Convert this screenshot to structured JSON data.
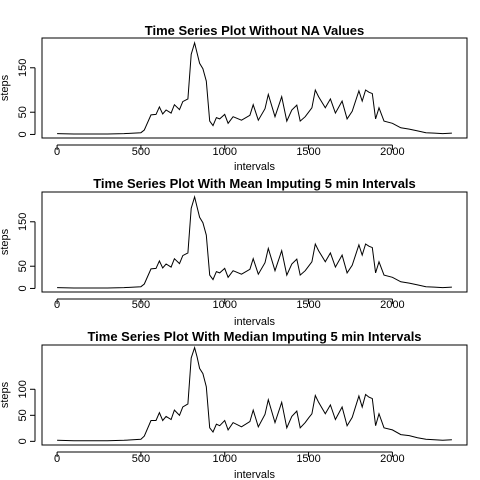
{
  "chart_data": [
    {
      "type": "line",
      "title": "Time Series Plot Without NA Values",
      "xlabel": "intervals",
      "ylabel": "steps",
      "xlim": [
        -90,
        2445
      ],
      "ylim": [
        -8,
        217
      ],
      "xticks": [
        0,
        500,
        1000,
        1500,
        2000
      ],
      "yticks": [
        0,
        50,
        150
      ],
      "grid": false,
      "series": [
        {
          "x": [
            0,
            100,
            200,
            300,
            400,
            500,
            520,
            560,
            590,
            610,
            630,
            650,
            680,
            700,
            730,
            750,
            780,
            800,
            820,
            835,
            850,
            870,
            890,
            910,
            930,
            950,
            970,
            1000,
            1020,
            1050,
            1100,
            1150,
            1170,
            1200,
            1240,
            1260,
            1300,
            1340,
            1370,
            1400,
            1430,
            1450,
            1480,
            1500,
            1520,
            1540,
            1560,
            1600,
            1630,
            1660,
            1700,
            1730,
            1760,
            1800,
            1820,
            1840,
            1860,
            1880,
            1900,
            1920,
            1950,
            2000,
            2050,
            2100,
            2150,
            2200,
            2250,
            2300,
            2355
          ],
          "y": [
            2,
            1,
            1,
            1,
            2,
            4,
            10,
            44,
            45,
            62,
            46,
            55,
            48,
            67,
            56,
            74,
            80,
            180,
            206,
            183,
            160,
            148,
            120,
            30,
            20,
            38,
            35,
            45,
            25,
            40,
            32,
            43,
            67,
            32,
            58,
            90,
            40,
            85,
            30,
            55,
            66,
            30,
            40,
            50,
            60,
            100,
            85,
            60,
            80,
            48,
            75,
            35,
            52,
            98,
            75,
            100,
            95,
            92,
            35,
            60,
            30,
            25,
            15,
            12,
            8,
            4,
            3,
            2,
            3
          ]
        }
      ]
    },
    {
      "type": "line",
      "title": "Time Series Plot With Mean Imputing 5 min Intervals",
      "xlabel": "intervals",
      "ylabel": "steps",
      "xlim": [
        -90,
        2445
      ],
      "ylim": [
        -8,
        217
      ],
      "xticks": [
        0,
        500,
        1000,
        1500,
        2000
      ],
      "yticks": [
        0,
        50,
        150
      ],
      "grid": false,
      "series": [
        {
          "x": [
            0,
            100,
            200,
            300,
            400,
            500,
            520,
            560,
            590,
            610,
            630,
            650,
            680,
            700,
            730,
            750,
            780,
            800,
            820,
            835,
            850,
            870,
            890,
            910,
            930,
            950,
            970,
            1000,
            1020,
            1050,
            1100,
            1150,
            1170,
            1200,
            1240,
            1260,
            1300,
            1340,
            1370,
            1400,
            1430,
            1450,
            1480,
            1500,
            1520,
            1540,
            1560,
            1600,
            1630,
            1660,
            1700,
            1730,
            1760,
            1800,
            1820,
            1840,
            1860,
            1880,
            1900,
            1920,
            1950,
            2000,
            2050,
            2100,
            2150,
            2200,
            2250,
            2300,
            2355
          ],
          "y": [
            2,
            1,
            1,
            1,
            2,
            4,
            10,
            44,
            45,
            62,
            46,
            55,
            48,
            67,
            56,
            74,
            80,
            180,
            206,
            183,
            160,
            148,
            120,
            30,
            20,
            38,
            35,
            45,
            25,
            40,
            32,
            43,
            67,
            32,
            58,
            90,
            40,
            85,
            30,
            55,
            66,
            30,
            40,
            50,
            60,
            100,
            85,
            60,
            80,
            48,
            75,
            35,
            52,
            98,
            75,
            100,
            95,
            92,
            35,
            60,
            30,
            25,
            15,
            12,
            8,
            4,
            3,
            2,
            3
          ]
        }
      ]
    },
    {
      "type": "line",
      "title": "Time Series Plot With Median Imputing 5 min Intervals",
      "xlabel": "intervals",
      "ylabel": "steps",
      "xlim": [
        -90,
        2445
      ],
      "ylim": [
        -7,
        185
      ],
      "xticks": [
        0,
        500,
        1000,
        1500,
        2000
      ],
      "yticks": [
        0,
        50,
        100
      ],
      "grid": false,
      "series": [
        {
          "x": [
            0,
            100,
            200,
            300,
            400,
            500,
            520,
            560,
            590,
            610,
            630,
            650,
            680,
            700,
            730,
            750,
            780,
            800,
            820,
            835,
            850,
            870,
            890,
            910,
            930,
            950,
            970,
            1000,
            1020,
            1050,
            1100,
            1150,
            1170,
            1200,
            1240,
            1260,
            1300,
            1340,
            1370,
            1400,
            1430,
            1450,
            1480,
            1500,
            1520,
            1540,
            1560,
            1600,
            1630,
            1660,
            1700,
            1730,
            1760,
            1800,
            1820,
            1840,
            1860,
            1880,
            1900,
            1920,
            1950,
            2000,
            2050,
            2100,
            2150,
            2200,
            2250,
            2300,
            2355
          ],
          "y": [
            2,
            1,
            1,
            1,
            2,
            4,
            10,
            40,
            40,
            55,
            40,
            48,
            42,
            60,
            50,
            66,
            72,
            160,
            180,
            162,
            140,
            130,
            105,
            26,
            18,
            33,
            30,
            40,
            22,
            36,
            28,
            38,
            60,
            28,
            52,
            80,
            36,
            75,
            26,
            48,
            58,
            26,
            36,
            45,
            53,
            88,
            75,
            53,
            70,
            42,
            66,
            30,
            46,
            87,
            66,
            90,
            85,
            82,
            30,
            53,
            26,
            22,
            13,
            11,
            7,
            4,
            3,
            2,
            3
          ]
        }
      ]
    }
  ]
}
